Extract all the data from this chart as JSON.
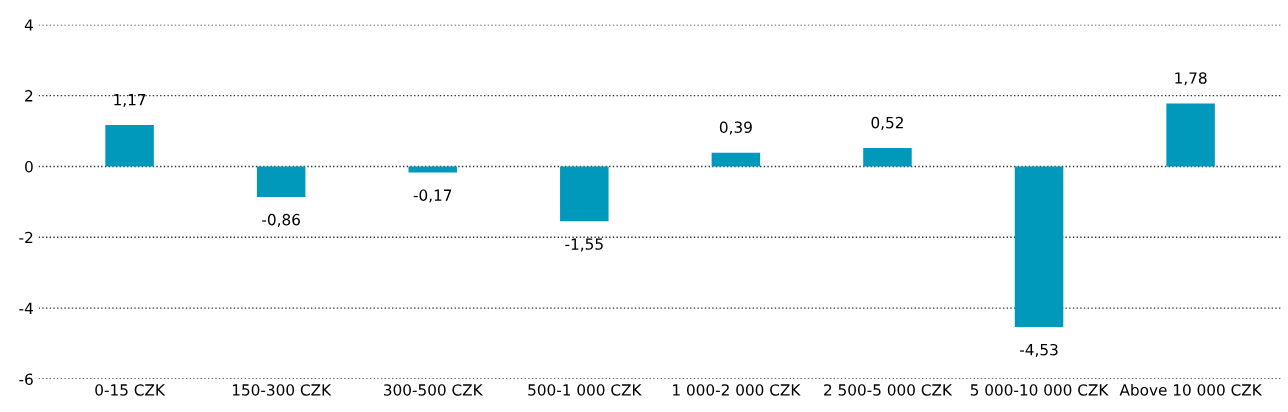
{
  "chart_data": {
    "type": "bar",
    "categories": [
      "0-15 CZK",
      "150-300 CZK",
      "300-500 CZK",
      "500-1 000 CZK",
      "1 000-2 000 CZK",
      "2 500-5 000 CZK",
      "5 000-10 000 CZK",
      "Above 10 000 CZK"
    ],
    "values": [
      1.17,
      -0.86,
      -0.17,
      -1.55,
      0.39,
      0.52,
      -4.53,
      1.78
    ],
    "value_labels": [
      "1,17",
      "-0,86",
      "-0,17",
      "-1,55",
      "0,39",
      "0,52",
      "-4,53",
      "1,78"
    ],
    "color": "#0099bb",
    "ylim": [
      -6,
      4
    ],
    "yticks": [
      -6,
      -4,
      -2,
      0,
      2,
      4
    ],
    "grid": "y"
  }
}
